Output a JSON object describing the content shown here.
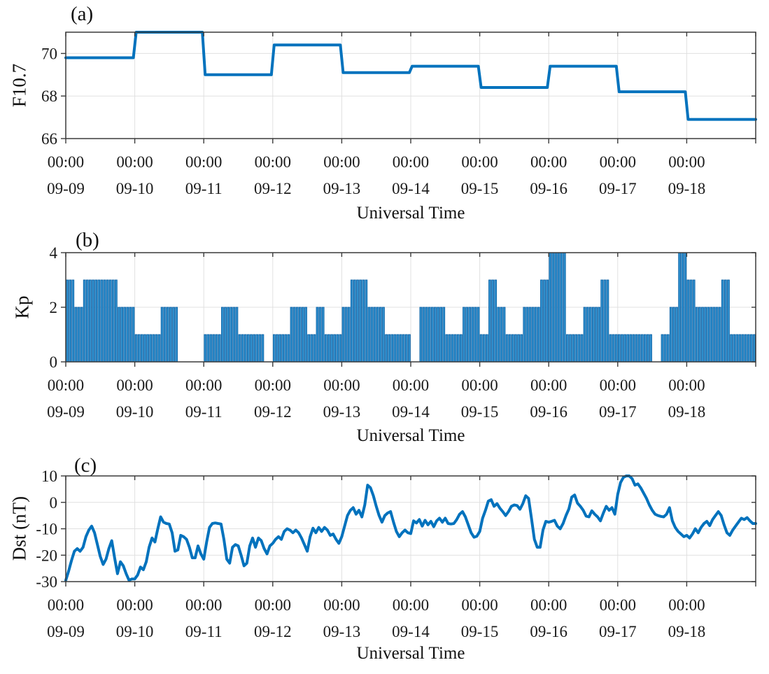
{
  "figure": {
    "background": "#ffffff",
    "line_color": "#0072BD",
    "bar_fill": "#3090ce",
    "bar_edge": "#0d62a6",
    "axis_color": "#3a3a3a",
    "grid_color": "#e0e0e0",
    "text_color": "#1a1a1a"
  },
  "xaxis": {
    "xlabel": "Universal Time",
    "tick_times": [
      "00:00",
      "00:00",
      "00:00",
      "00:00",
      "00:00",
      "00:00",
      "00:00",
      "00:00",
      "00:00",
      "00:00"
    ],
    "tick_dates": [
      "09-09",
      "09-10",
      "09-11",
      "09-12",
      "09-13",
      "09-14",
      "09-15",
      "09-16",
      "09-17",
      "09-18"
    ]
  },
  "panels": {
    "a": {
      "letter": "(a)",
      "ylabel": "F10.7"
    },
    "b": {
      "letter": "(b)",
      "ylabel": "Kp"
    },
    "c": {
      "letter": "(c)",
      "ylabel": "Dst (nT)"
    }
  },
  "chart_data": [
    {
      "type": "line",
      "style": "stairs",
      "panel": "a",
      "title": "Daily F10.7 solar flux index",
      "categories": [
        "09-09",
        "09-10",
        "09-11",
        "09-12",
        "09-13",
        "09-14",
        "09-15",
        "09-16",
        "09-17",
        "09-18"
      ],
      "values": [
        69.8,
        71.0,
        69.0,
        70.4,
        69.1,
        69.4,
        68.4,
        69.4,
        68.2,
        66.9
      ],
      "xlabel": "Universal Time",
      "ylabel": "F10.7",
      "ylim": [
        66,
        71
      ],
      "yticks": [
        66,
        68,
        70
      ],
      "grid": true
    },
    {
      "type": "bar",
      "panel": "b",
      "title": "3-hourly Kp index",
      "hours_per_value": 3,
      "categories": [
        "09-09",
        "09-10",
        "09-11",
        "09-12",
        "09-13",
        "09-14",
        "09-15",
        "09-16",
        "09-17",
        "09-18"
      ],
      "values": [
        3,
        2,
        3,
        3,
        3,
        3,
        2,
        2,
        1,
        1,
        1,
        2,
        2,
        0,
        0,
        0,
        1,
        1,
        2,
        2,
        1,
        1,
        1,
        0,
        1,
        1,
        2,
        2,
        1,
        2,
        1,
        1,
        2,
        3,
        3,
        2,
        2,
        1,
        1,
        1,
        0,
        2,
        2,
        2,
        1,
        1,
        2,
        2,
        1,
        3,
        2,
        1,
        1,
        2,
        2,
        3,
        4,
        4,
        1,
        1,
        2,
        2,
        3,
        1,
        1,
        1,
        1,
        1,
        0,
        1,
        2,
        4,
        3,
        2,
        2,
        2,
        3,
        1,
        1,
        1
      ],
      "xlabel": "Universal Time",
      "ylabel": "Kp",
      "ylim": [
        0,
        4
      ],
      "yticks": [
        0,
        2,
        4
      ],
      "grid": true
    },
    {
      "type": "line",
      "panel": "c",
      "title": "Hourly Dst index (nT)",
      "hours_per_value": 1,
      "categories": [
        "09-09",
        "09-10",
        "09-11",
        "09-12",
        "09-13",
        "09-14",
        "09-15",
        "09-16",
        "09-17",
        "09-18"
      ],
      "values": [
        -29.5,
        -26,
        -22,
        -18.5,
        -17.5,
        -18.5,
        -17,
        -13,
        -10.5,
        -9,
        -11.5,
        -16,
        -20.5,
        -23.5,
        -21.5,
        -17.5,
        -14.5,
        -21,
        -27,
        -22.5,
        -24,
        -27,
        -29.5,
        -29,
        -29,
        -27.5,
        -24.5,
        -25.5,
        -22.5,
        -17,
        -13.5,
        -15,
        -10,
        -5.5,
        -7.5,
        -8,
        -8.2,
        -11.5,
        -18.5,
        -18,
        -12.5,
        -13,
        -14,
        -17,
        -21,
        -21,
        -16.5,
        -19.5,
        -21.5,
        -15,
        -9.5,
        -8,
        -7.8,
        -8,
        -8.2,
        -14,
        -21.5,
        -23,
        -17,
        -16,
        -16.5,
        -20,
        -24,
        -23,
        -16.5,
        -13.5,
        -17,
        -13.5,
        -14.5,
        -17.5,
        -19.5,
        -16.5,
        -15.5,
        -14,
        -13,
        -14,
        -11,
        -10,
        -10.5,
        -11.5,
        -10.5,
        -11.5,
        -13.5,
        -16,
        -18.5,
        -13,
        -9.8,
        -11.5,
        -9.5,
        -11,
        -9.5,
        -10.5,
        -12.5,
        -12,
        -14,
        -15.5,
        -13,
        -9,
        -5,
        -3,
        -2,
        -4.5,
        -3,
        -5.5,
        -1,
        6.5,
        5.5,
        2.5,
        -1.5,
        -5,
        -7.5,
        -5,
        -4,
        -3.5,
        -7.5,
        -11,
        -13,
        -11.5,
        -10.5,
        -11.5,
        -11.8,
        -7,
        -7.8,
        -6.5,
        -9,
        -6.8,
        -8.5,
        -7.2,
        -9.2,
        -7,
        -6,
        -7.5,
        -6,
        -8,
        -8.2,
        -8,
        -6.5,
        -4.5,
        -3.5,
        -5.5,
        -8.5,
        -11.5,
        -13.2,
        -12.8,
        -11,
        -6,
        -3,
        0.5,
        1,
        -1.5,
        -0.5,
        -2.2,
        -3.5,
        -5,
        -3.5,
        -1.5,
        -1,
        -1.2,
        -2.6,
        -0.5,
        2.5,
        1.5,
        -6,
        -14,
        -17,
        -17,
        -10.5,
        -7.2,
        -7.5,
        -7.2,
        -6.8,
        -9,
        -10,
        -8,
        -5,
        -2.5,
        2,
        2.8,
        -0.3,
        -1.5,
        -3,
        -5.2,
        -5.5,
        -3.2,
        -4.5,
        -5.5,
        -7,
        -4,
        -1.5,
        -3,
        -2,
        -4.5,
        3,
        7.5,
        9.5,
        10,
        10,
        9,
        6.5,
        7,
        5.5,
        3.5,
        1.5,
        -1,
        -3,
        -4.5,
        -5,
        -5.3,
        -5.5,
        -4.5,
        -2,
        -7,
        -9.5,
        -11,
        -12,
        -13,
        -12.5,
        -13.5,
        -12,
        -10,
        -11.5,
        -9.5,
        -8,
        -7.2,
        -8.8,
        -6.5,
        -5,
        -3.5,
        -5,
        -8.5,
        -11.5,
        -12.5,
        -10.5,
        -9,
        -7.5,
        -6,
        -6.5,
        -5.8,
        -7,
        -8,
        -8
      ],
      "xlabel": "Universal Time",
      "ylabel": "Dst (nT)",
      "ylim": [
        -30,
        10
      ],
      "yticks": [
        10,
        0,
        -10,
        -20,
        -30
      ],
      "grid": true
    }
  ]
}
